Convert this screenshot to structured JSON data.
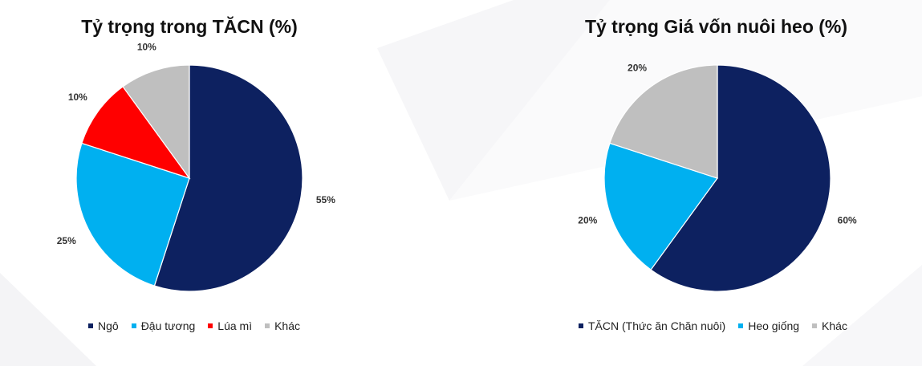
{
  "chart_data": [
    {
      "type": "pie",
      "title": "Tỷ trọng trong TĂCN (%)",
      "categories": [
        "Ngô",
        "Đậu tương",
        "Lúa mì",
        "Khác"
      ],
      "values": [
        55,
        25,
        10,
        10
      ],
      "labels": [
        "55%",
        "25%",
        "10%",
        "10%"
      ],
      "colors": [
        "#0d2160",
        "#00b0f0",
        "#ff0000",
        "#bfbfbf"
      ],
      "legend": "bottom"
    },
    {
      "type": "pie",
      "title": "Tỷ trọng Giá vốn nuôi heo (%)",
      "categories": [
        "TĂCN (Thức ăn Chăn nuôi)",
        "Heo giống",
        "Khác"
      ],
      "values": [
        60,
        20,
        20
      ],
      "labels": [
        "60%",
        "20%",
        "20%"
      ],
      "colors": [
        "#0d2160",
        "#00b0f0",
        "#bfbfbf"
      ],
      "legend": "bottom"
    }
  ]
}
